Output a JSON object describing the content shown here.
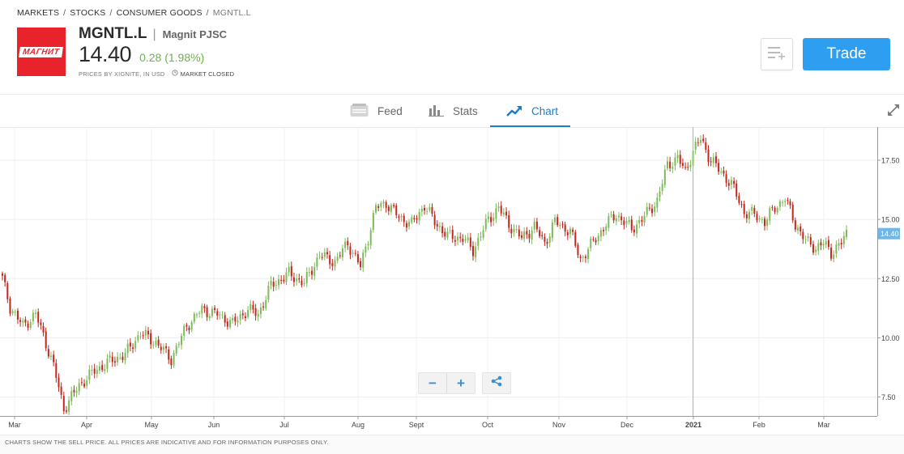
{
  "breadcrumb": [
    "MARKETS",
    "STOCKS",
    "CONSUMER GOODS",
    "MGNTL.L"
  ],
  "instrument": {
    "logo_text": "МАГНИТ",
    "symbol": "MGNTL.L",
    "separator": "|",
    "company": "Magnit PJSC",
    "price": "14.40",
    "change": "0.28 (1.98%)",
    "change_color": "#6cb34a",
    "prices_by": "PRICES BY XIGNITE, IN USD",
    "market_status": "MARKET CLOSED"
  },
  "actions": {
    "watchlist_icon": "add-to-list-icon",
    "trade_label": "Trade",
    "trade_color": "#2d9ef0"
  },
  "tabs": [
    {
      "label": "Feed",
      "icon": "feed-icon",
      "active": false
    },
    {
      "label": "Stats",
      "icon": "stats-icon",
      "active": false
    },
    {
      "label": "Chart",
      "icon": "chart-icon",
      "active": true
    }
  ],
  "chart_data": {
    "type": "candlestick",
    "x_tick_labels": [
      "Mar",
      "Apr",
      "May",
      "Jun",
      "Jul",
      "Aug",
      "Sept",
      "Oct",
      "Nov",
      "Dec",
      "2021",
      "Feb",
      "Mar"
    ],
    "y_tick_labels": [
      "17.50",
      "15.00",
      "12.50",
      "10.00",
      "7.50"
    ],
    "ylim": [
      6.7,
      18.9
    ],
    "last_price_label": "14.40",
    "up_color": "#7dbb5a",
    "down_color": "#c4261c",
    "grid": true,
    "close_path": [
      [
        0,
        12.5
      ],
      [
        3,
        11.3
      ],
      [
        8,
        10.5
      ],
      [
        13,
        11.0
      ],
      [
        16,
        10.1
      ],
      [
        20,
        8.8
      ],
      [
        24,
        7.0
      ],
      [
        30,
        8.0
      ],
      [
        36,
        8.6
      ],
      [
        42,
        9.0
      ],
      [
        48,
        9.3
      ],
      [
        54,
        10.2
      ],
      [
        60,
        9.8
      ],
      [
        66,
        9.1
      ],
      [
        72,
        10.5
      ],
      [
        78,
        11.2
      ],
      [
        84,
        11.0
      ],
      [
        90,
        10.6
      ],
      [
        96,
        11.2
      ],
      [
        100,
        11.0
      ],
      [
        105,
        12.2
      ],
      [
        112,
        12.7
      ],
      [
        118,
        12.3
      ],
      [
        124,
        13.5
      ],
      [
        130,
        13.2
      ],
      [
        135,
        14.0
      ],
      [
        140,
        13.0
      ],
      [
        146,
        15.5
      ],
      [
        150,
        15.7
      ],
      [
        155,
        15.1
      ],
      [
        160,
        14.8
      ],
      [
        165,
        15.6
      ],
      [
        169,
        14.9
      ],
      [
        174,
        14.3
      ],
      [
        180,
        14.2
      ],
      [
        184,
        13.7
      ],
      [
        190,
        15.0
      ],
      [
        194,
        15.5
      ],
      [
        198,
        14.8
      ],
      [
        203,
        14.2
      ],
      [
        208,
        14.7
      ],
      [
        212,
        14.0
      ],
      [
        216,
        14.9
      ],
      [
        222,
        14.5
      ],
      [
        226,
        13.3
      ],
      [
        232,
        14.2
      ],
      [
        236,
        14.8
      ],
      [
        240,
        15.2
      ],
      [
        246,
        14.6
      ],
      [
        250,
        15.0
      ],
      [
        256,
        15.8
      ],
      [
        260,
        17.3
      ],
      [
        264,
        17.6
      ],
      [
        267,
        17.0
      ],
      [
        270,
        17.9
      ],
      [
        273,
        18.4
      ],
      [
        276,
        17.7
      ],
      [
        280,
        17.1
      ],
      [
        285,
        16.5
      ],
      [
        290,
        15.3
      ],
      [
        294,
        15.2
      ],
      [
        298,
        14.9
      ],
      [
        302,
        15.5
      ],
      [
        306,
        15.9
      ],
      [
        310,
        14.8
      ],
      [
        314,
        14.1
      ],
      [
        318,
        13.8
      ],
      [
        321,
        14.0
      ],
      [
        324,
        13.6
      ],
      [
        328,
        14.0
      ],
      [
        330,
        14.4
      ]
    ]
  },
  "chart_controls": {
    "zoom_out": "−",
    "zoom_in": "+",
    "share_icon": "share-icon"
  },
  "footer": "CHARTS SHOW THE SELL PRICE. ALL PRICES ARE INDICATIVE AND FOR INFORMATION PURPOSES ONLY."
}
